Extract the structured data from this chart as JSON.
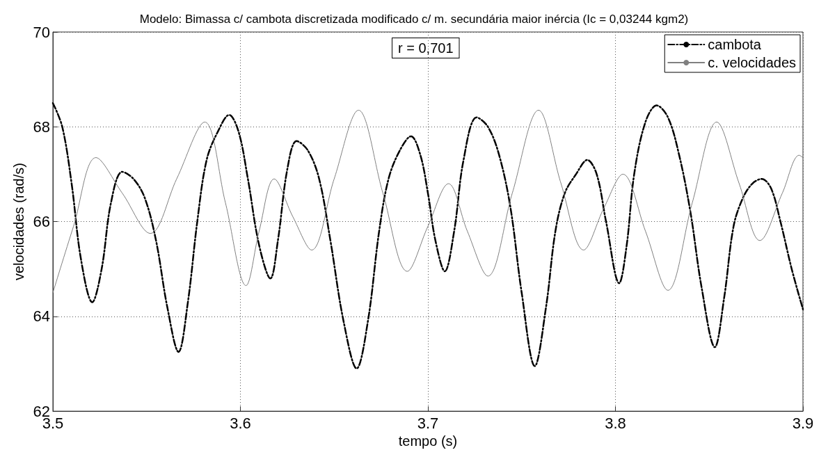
{
  "chart_data": {
    "type": "line",
    "title": "Modelo: Bimassa c/ cambota discretizada modificado c/ m. secundária maior inércia (Ic = 0,03244 kgm2)",
    "xlabel": "tempo (s)",
    "ylabel": "velocidades (rad/s)",
    "annotations": [
      "r = 0,701"
    ],
    "xlim": [
      3.5,
      3.9
    ],
    "xticks": [
      3.5,
      3.6,
      3.7,
      3.8,
      3.9
    ],
    "ylim": [
      62,
      70
    ],
    "yticks": [
      62,
      64,
      66,
      68,
      70
    ],
    "grid": true,
    "legend": "top right",
    "marker": "none",
    "series": [
      {
        "name": "cambota",
        "color": "#000000",
        "line_style": "dashed",
        "x": [
          3.5,
          3.505,
          3.51,
          3.515,
          3.521,
          3.526,
          3.531,
          3.537,
          3.543,
          3.549,
          3.555,
          3.561,
          3.567,
          3.572,
          3.577,
          3.582,
          3.588,
          3.594,
          3.599,
          3.604,
          3.61,
          3.616,
          3.62,
          3.625,
          3.63,
          3.636,
          3.642,
          3.648,
          3.655,
          3.662,
          3.668,
          3.674,
          3.679,
          3.685,
          3.691,
          3.696,
          3.7,
          3.704,
          3.709,
          3.714,
          3.719,
          3.726,
          3.732,
          3.738,
          3.744,
          3.75,
          3.757,
          3.763,
          3.768,
          3.773,
          3.779,
          3.785,
          3.79,
          3.795,
          3.802,
          3.806,
          3.81,
          3.816,
          3.822,
          3.828,
          3.834,
          3.84,
          3.846,
          3.853,
          3.858,
          3.863,
          3.868,
          3.873,
          3.878,
          3.883,
          3.888,
          3.894,
          3.9
        ],
        "values": [
          68.5,
          68.0,
          66.8,
          65.2,
          64.3,
          65.0,
          66.4,
          67.05,
          66.9,
          66.5,
          65.6,
          64.2,
          63.25,
          64.3,
          66.0,
          67.3,
          67.9,
          68.25,
          67.9,
          66.9,
          65.5,
          64.8,
          65.6,
          67.1,
          67.7,
          67.5,
          66.9,
          65.6,
          63.9,
          62.9,
          63.9,
          65.8,
          66.9,
          67.5,
          67.8,
          67.4,
          66.6,
          65.6,
          64.95,
          65.8,
          67.3,
          68.2,
          68.0,
          67.4,
          66.3,
          64.5,
          62.95,
          64.2,
          65.8,
          66.6,
          67.0,
          67.3,
          67.0,
          66.0,
          64.7,
          65.5,
          67.0,
          68.1,
          68.45,
          68.2,
          67.4,
          66.2,
          64.6,
          63.35,
          64.4,
          65.9,
          66.5,
          66.8,
          66.9,
          66.7,
          66.0,
          65.0,
          64.15
        ]
      },
      {
        "name": "c. velocidades",
        "color": "#808080",
        "line_style": "solid",
        "x": [
          3.5,
          3.511,
          3.523,
          3.537,
          3.552,
          3.566,
          3.581,
          3.592,
          3.603,
          3.61,
          3.618,
          3.628,
          3.638,
          3.65,
          3.663,
          3.676,
          3.689,
          3.7,
          3.711,
          3.721,
          3.732,
          3.745,
          3.759,
          3.771,
          3.783,
          3.794,
          3.804,
          3.816,
          3.828,
          3.841,
          3.854,
          3.866,
          3.877,
          3.889,
          3.898,
          3.9
        ],
        "values": [
          64.5,
          65.9,
          67.35,
          66.6,
          65.75,
          66.9,
          68.1,
          66.4,
          64.65,
          65.8,
          66.9,
          66.1,
          65.4,
          66.9,
          68.35,
          66.6,
          64.95,
          65.9,
          66.8,
          65.8,
          64.85,
          66.6,
          68.35,
          66.8,
          65.4,
          66.3,
          67.0,
          65.8,
          64.55,
          66.4,
          68.1,
          66.8,
          65.6,
          66.6,
          67.4,
          67.35
        ]
      }
    ]
  }
}
